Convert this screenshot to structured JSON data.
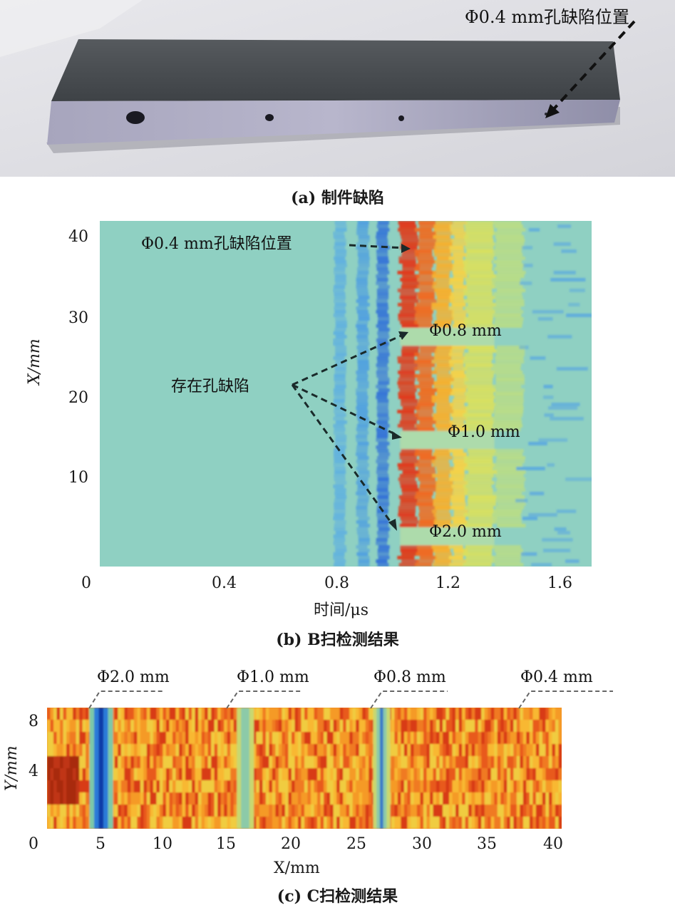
{
  "panel_a": {
    "photo_annotation": "Φ0.4 mm孔缺陷位置",
    "caption": "(a) 制件缺陷"
  },
  "panel_b": {
    "caption": "(b) B扫检测结果",
    "ylabel": "X/mm",
    "xlabel": "时间/μs",
    "xticks": [
      "0",
      "0.4",
      "0.8",
      "1.2",
      "1.6"
    ],
    "yticks": [
      "40",
      "30",
      "20",
      "10"
    ],
    "annotations": {
      "defect_04": "Φ0.4 mm孔缺陷位置",
      "exists": "存在孔缺陷",
      "d08": "Φ0.8 mm",
      "d10": "Φ1.0 mm",
      "d20": "Φ2.0 mm"
    }
  },
  "panel_c": {
    "caption": "(c) C扫检测结果",
    "ylabel": "Y/mm",
    "xlabel": "X/mm",
    "xticks": [
      "0",
      "5",
      "10",
      "15",
      "20",
      "25",
      "30",
      "35",
      "40"
    ],
    "yticks": [
      "8",
      "4"
    ],
    "annotations": [
      "Φ2.0 mm",
      "Φ1.0 mm",
      "Φ0.8 mm",
      "Φ0.4 mm"
    ]
  },
  "chart_data": [
    {
      "type": "heatmap",
      "title": "(b) B扫检测结果",
      "xlabel": "时间/μs",
      "ylabel": "X/mm",
      "xlim": [
        0,
        1.72
      ],
      "ylim": [
        0,
        42
      ],
      "defect_positions_x_mm": [
        {
          "label": "Φ0.4 mm",
          "x": 40
        },
        {
          "label": "Φ0.8 mm",
          "x": 28
        },
        {
          "label": "Φ1.0 mm",
          "x": 15.5
        },
        {
          "label": "Φ2.0 mm",
          "x": 4
        }
      ],
      "echo_band_time_us": [
        1.05,
        1.28
      ]
    },
    {
      "type": "heatmap",
      "title": "(c) C扫检测结果",
      "xlabel": "X/mm",
      "ylabel": "Y/mm",
      "xlim": [
        0,
        40
      ],
      "ylim": [
        0,
        9
      ],
      "defects": [
        {
          "label": "Φ2.0 mm",
          "x": 4
        },
        {
          "label": "Φ1.0 mm",
          "x": 15.5
        },
        {
          "label": "Φ0.8 mm",
          "x": 26
        },
        {
          "label": "Φ0.4 mm",
          "x": 37
        }
      ]
    }
  ]
}
